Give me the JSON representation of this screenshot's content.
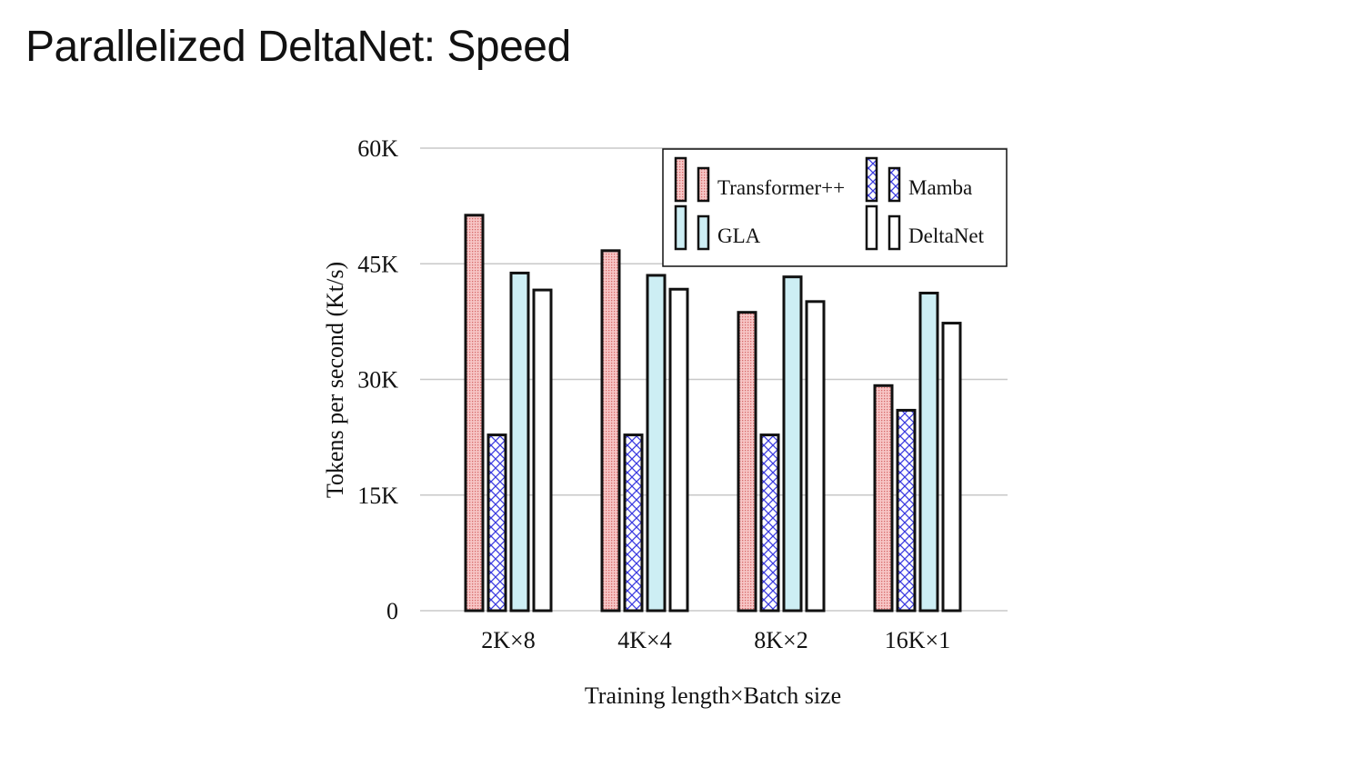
{
  "slide": {
    "title": "Parallelized DeltaNet: Speed"
  },
  "chart_data": {
    "type": "bar",
    "title": "",
    "xlabel": "Training length×Batch size",
    "ylabel": "Tokens per second (Kt/s)",
    "categories": [
      "2K×8",
      "4K×4",
      "8K×2",
      "16K×1"
    ],
    "ylim": [
      0,
      60000
    ],
    "yticks": [
      0,
      15000,
      30000,
      45000,
      60000
    ],
    "ytick_labels": [
      "0",
      "15K",
      "30K",
      "45K",
      "60K"
    ],
    "grid": "horizontal",
    "legend_position": "top-right",
    "series": [
      {
        "name": "Transformer++",
        "values": [
          51300,
          46700,
          38700,
          29200
        ],
        "color": "#f7c6c6",
        "pattern": "dots"
      },
      {
        "name": "Mamba",
        "values": [
          22800,
          22800,
          22800,
          26000
        ],
        "color": "#ffffff",
        "pattern": "crosshatch-blue"
      },
      {
        "name": "GLA",
        "values": [
          43800,
          43500,
          43300,
          41200
        ],
        "color": "#cdeef4",
        "pattern": "solid"
      },
      {
        "name": "DeltaNet",
        "values": [
          41600,
          41700,
          40100,
          37300
        ],
        "color": "#ffffff",
        "pattern": "solid"
      }
    ]
  }
}
